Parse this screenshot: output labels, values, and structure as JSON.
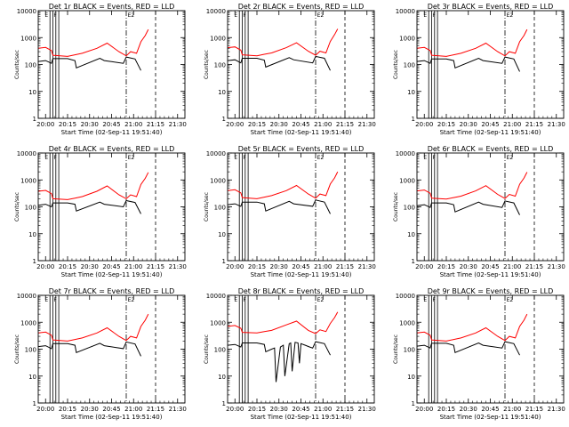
{
  "figure": {
    "background": "#ffffff",
    "events_color": "#000000",
    "lld_color": "#ff0000"
  },
  "chart_data": [
    {
      "type": "line",
      "title": "Det 1r BLACK = Events, RED = LLD",
      "xlabel": "Start Time (02-Sep-11 19:51:40)",
      "ylabel": "Counts/sec",
      "x_ticks": [
        "20:00",
        "20:15",
        "20:30",
        "20:45",
        "21:00",
        "21:15",
        "21:30"
      ],
      "y_ticks": [
        "1",
        "10",
        "100",
        "1000",
        "10000"
      ],
      "y_scale": "log",
      "xlim": [
        0,
        100
      ],
      "ylim": [
        1,
        10000
      ],
      "flag_labels": [
        "E",
        "F",
        "E2"
      ],
      "series": [
        {
          "name": "Events",
          "color": "#000000",
          "x": [
            0,
            5,
            9,
            10,
            20,
            25,
            26,
            42,
            45,
            58,
            60,
            66,
            70
          ],
          "y": [
            130,
            140,
            110,
            165,
            165,
            140,
            75,
            170,
            140,
            110,
            190,
            160,
            60
          ]
        },
        {
          "name": "LLD",
          "color": "#ff0000",
          "x": [
            0,
            5,
            9,
            10,
            20,
            25,
            30,
            40,
            47,
            55,
            60,
            63,
            67,
            70,
            73,
            75
          ],
          "y": [
            400,
            430,
            330,
            220,
            200,
            230,
            260,
            400,
            620,
            300,
            210,
            300,
            260,
            700,
            1200,
            2000
          ]
        }
      ]
    },
    {
      "type": "line",
      "title": "Det 2r BLACK = Events, RED = LLD",
      "xlabel": "Start Time (02-Sep-11 19:51:40)",
      "ylabel": "Counts/sec",
      "x_ticks": [
        "20:00",
        "20:15",
        "20:30",
        "20:45",
        "21:00",
        "21:15",
        "21:30"
      ],
      "y_ticks": [
        "1",
        "10",
        "100",
        "1000",
        "10000"
      ],
      "y_scale": "log",
      "xlim": [
        0,
        100
      ],
      "ylim": [
        1,
        10000
      ],
      "flag_labels": [
        "E",
        "F",
        "E2"
      ],
      "series": [
        {
          "name": "Events",
          "color": "#000000",
          "x": [
            0,
            5,
            9,
            10,
            20,
            25,
            26,
            42,
            45,
            58,
            60,
            66,
            70
          ],
          "y": [
            140,
            150,
            115,
            170,
            170,
            145,
            80,
            180,
            150,
            115,
            200,
            170,
            60
          ]
        },
        {
          "name": "LLD",
          "color": "#ff0000",
          "x": [
            0,
            5,
            9,
            10,
            20,
            25,
            30,
            40,
            47,
            55,
            60,
            63,
            67,
            70,
            73,
            75
          ],
          "y": [
            420,
            450,
            340,
            230,
            210,
            240,
            270,
            420,
            640,
            310,
            220,
            310,
            270,
            720,
            1300,
            2100
          ]
        }
      ]
    },
    {
      "type": "line",
      "title": "Det 3r BLACK = Events, RED = LLD",
      "xlabel": "Start Time (02-Sep-11 19:51:40)",
      "ylabel": "Counts/sec",
      "x_ticks": [
        "20:00",
        "20:15",
        "20:30",
        "20:45",
        "21:00",
        "21:15",
        "21:30"
      ],
      "y_ticks": [
        "1",
        "10",
        "100",
        "1000",
        "10000"
      ],
      "y_scale": "log",
      "xlim": [
        0,
        100
      ],
      "ylim": [
        1,
        10000
      ],
      "flag_labels": [
        "E",
        "F",
        "E2"
      ],
      "series": [
        {
          "name": "Events",
          "color": "#000000",
          "x": [
            0,
            5,
            9,
            10,
            20,
            25,
            26,
            42,
            45,
            58,
            60,
            66,
            70
          ],
          "y": [
            130,
            140,
            110,
            160,
            160,
            140,
            75,
            170,
            140,
            110,
            190,
            160,
            55
          ]
        },
        {
          "name": "LLD",
          "color": "#ff0000",
          "x": [
            0,
            5,
            9,
            10,
            20,
            25,
            30,
            40,
            47,
            55,
            60,
            63,
            67,
            70,
            73,
            75
          ],
          "y": [
            400,
            430,
            330,
            220,
            200,
            230,
            260,
            400,
            620,
            300,
            210,
            300,
            260,
            700,
            1200,
            2000
          ]
        }
      ]
    },
    {
      "type": "line",
      "title": "Det 4r BLACK = Events, RED = LLD",
      "xlabel": "Start Time (02-Sep-11 19:51:40)",
      "ylabel": "Counts/sec",
      "x_ticks": [
        "20:00",
        "20:15",
        "20:30",
        "20:45",
        "21:00",
        "21:15",
        "21:30"
      ],
      "y_ticks": [
        "1",
        "10",
        "100",
        "1000",
        "10000"
      ],
      "y_scale": "log",
      "xlim": [
        0,
        100
      ],
      "ylim": [
        1,
        10000
      ],
      "flag_labels": [
        "E",
        "F",
        "E2"
      ],
      "series": [
        {
          "name": "Events",
          "color": "#000000",
          "x": [
            0,
            5,
            9,
            10,
            20,
            25,
            26,
            42,
            45,
            58,
            60,
            66,
            70
          ],
          "y": [
            115,
            125,
            100,
            140,
            140,
            125,
            70,
            150,
            125,
            100,
            170,
            145,
            55
          ]
        },
        {
          "name": "LLD",
          "color": "#ff0000",
          "x": [
            0,
            5,
            9,
            10,
            20,
            25,
            30,
            40,
            47,
            55,
            60,
            63,
            67,
            70,
            73,
            75
          ],
          "y": [
            380,
            410,
            310,
            200,
            185,
            210,
            240,
            380,
            600,
            280,
            200,
            280,
            240,
            680,
            1150,
            1900
          ]
        }
      ]
    },
    {
      "type": "line",
      "title": "Det 5r BLACK = Events, RED = LLD",
      "xlabel": "Start Time (02-Sep-11 19:51:40)",
      "ylabel": "Counts/sec",
      "x_ticks": [
        "20:00",
        "20:15",
        "20:30",
        "20:45",
        "21:00",
        "21:15",
        "21:30"
      ],
      "y_ticks": [
        "1",
        "10",
        "100",
        "1000",
        "10000"
      ],
      "y_scale": "log",
      "xlim": [
        0,
        100
      ],
      "ylim": [
        1,
        10000
      ],
      "flag_labels": [
        "E",
        "F",
        "E2"
      ],
      "series": [
        {
          "name": "Events",
          "color": "#000000",
          "x": [
            0,
            5,
            9,
            10,
            20,
            25,
            26,
            42,
            45,
            58,
            60,
            66,
            70
          ],
          "y": [
            120,
            130,
            105,
            150,
            150,
            130,
            70,
            160,
            130,
            105,
            180,
            150,
            55
          ]
        },
        {
          "name": "LLD",
          "color": "#ff0000",
          "x": [
            0,
            5,
            9,
            10,
            20,
            25,
            30,
            40,
            47,
            55,
            60,
            63,
            67,
            70,
            73,
            75
          ],
          "y": [
            400,
            430,
            330,
            220,
            200,
            230,
            260,
            400,
            620,
            300,
            210,
            300,
            260,
            700,
            1200,
            2000
          ]
        }
      ]
    },
    {
      "type": "line",
      "title": "Det 6r BLACK = Events, RED = LLD",
      "xlabel": "Start Time (02-Sep-11 19:51:40)",
      "ylabel": "Counts/sec",
      "x_ticks": [
        "20:00",
        "20:15",
        "20:30",
        "20:45",
        "21:00",
        "21:15",
        "21:30"
      ],
      "y_ticks": [
        "1",
        "10",
        "100",
        "1000",
        "10000"
      ],
      "y_scale": "log",
      "xlim": [
        0,
        100
      ],
      "ylim": [
        1,
        10000
      ],
      "flag_labels": [
        "E",
        "F",
        "E2"
      ],
      "series": [
        {
          "name": "Events",
          "color": "#000000",
          "x": [
            0,
            5,
            9,
            10,
            20,
            25,
            26,
            42,
            45,
            58,
            60,
            66,
            70
          ],
          "y": [
            110,
            120,
            95,
            140,
            140,
            120,
            65,
            150,
            125,
            95,
            165,
            140,
            50
          ]
        },
        {
          "name": "LLD",
          "color": "#ff0000",
          "x": [
            0,
            5,
            9,
            10,
            20,
            25,
            30,
            40,
            47,
            55,
            60,
            63,
            67,
            70,
            73,
            75
          ],
          "y": [
            390,
            420,
            320,
            210,
            195,
            220,
            250,
            390,
            610,
            290,
            205,
            290,
            250,
            690,
            1180,
            1950
          ]
        }
      ]
    },
    {
      "type": "line",
      "title": "Det 7r BLACK = Events, RED = LLD",
      "xlabel": "Start Time (02-Sep-11 19:51:40)",
      "ylabel": "Counts/sec",
      "x_ticks": [
        "20:00",
        "20:15",
        "20:30",
        "20:45",
        "21:00",
        "21:15",
        "21:30"
      ],
      "y_ticks": [
        "1",
        "10",
        "100",
        "1000",
        "10000"
      ],
      "y_scale": "log",
      "xlim": [
        0,
        100
      ],
      "ylim": [
        1,
        10000
      ],
      "flag_labels": [
        "E",
        "F",
        "E2"
      ],
      "series": [
        {
          "name": "Events",
          "color": "#000000",
          "x": [
            0,
            5,
            9,
            10,
            20,
            25,
            26,
            42,
            45,
            58,
            60,
            66,
            70
          ],
          "y": [
            125,
            135,
            105,
            160,
            160,
            140,
            75,
            165,
            135,
            105,
            185,
            155,
            55
          ]
        },
        {
          "name": "LLD",
          "color": "#ff0000",
          "x": [
            0,
            5,
            9,
            10,
            20,
            25,
            30,
            40,
            47,
            55,
            60,
            63,
            67,
            70,
            73,
            75
          ],
          "y": [
            400,
            430,
            330,
            220,
            200,
            230,
            260,
            400,
            620,
            300,
            210,
            300,
            260,
            700,
            1200,
            2000
          ]
        }
      ]
    },
    {
      "type": "line",
      "title": "Det 8r BLACK = Events, RED = LLD",
      "xlabel": "Start Time (02-Sep-11 19:51:40)",
      "ylabel": "Counts/sec",
      "x_ticks": [
        "20:00",
        "20:15",
        "20:30",
        "20:45",
        "21:00",
        "21:15",
        "21:30"
      ],
      "y_ticks": [
        "1",
        "10",
        "100",
        "1000",
        "10000"
      ],
      "y_scale": "log",
      "xlim": [
        0,
        100
      ],
      "ylim": [
        1,
        10000
      ],
      "flag_labels": [
        "E",
        "F",
        "E2"
      ],
      "series": [
        {
          "name": "Events",
          "color": "#000000",
          "x": [
            0,
            5,
            9,
            10,
            20,
            25,
            26,
            30,
            32,
            33,
            36,
            38,
            39,
            42,
            43,
            44,
            46,
            48,
            49,
            50,
            53,
            56,
            58,
            60,
            66,
            70
          ],
          "y": [
            140,
            150,
            120,
            170,
            170,
            150,
            80,
            100,
            110,
            6,
            120,
            140,
            10,
            160,
            170,
            15,
            180,
            170,
            30,
            160,
            140,
            120,
            110,
            190,
            160,
            60
          ]
        },
        {
          "name": "LLD",
          "color": "#ff0000",
          "x": [
            0,
            5,
            9,
            10,
            20,
            25,
            30,
            40,
            47,
            55,
            60,
            63,
            67,
            70,
            73,
            75
          ],
          "y": [
            700,
            760,
            600,
            420,
            400,
            450,
            500,
            800,
            1100,
            500,
            380,
            520,
            450,
            900,
            1500,
            2400
          ]
        }
      ]
    },
    {
      "type": "line",
      "title": "Det 9r BLACK = Events, RED = LLD",
      "xlabel": "Start Time (02-Sep-11 19:51:40)",
      "ylabel": "Counts/sec",
      "x_ticks": [
        "20:00",
        "20:15",
        "20:30",
        "20:45",
        "21:00",
        "21:15",
        "21:30"
      ],
      "y_ticks": [
        "1",
        "10",
        "100",
        "1000",
        "10000"
      ],
      "y_scale": "log",
      "xlim": [
        0,
        100
      ],
      "ylim": [
        1,
        10000
      ],
      "flag_labels": [
        "E",
        "F",
        "E2"
      ],
      "series": [
        {
          "name": "Events",
          "color": "#000000",
          "x": [
            0,
            5,
            9,
            10,
            20,
            25,
            26,
            42,
            45,
            58,
            60,
            66,
            70
          ],
          "y": [
            130,
            140,
            110,
            165,
            165,
            140,
            75,
            170,
            140,
            110,
            190,
            160,
            60
          ]
        },
        {
          "name": "LLD",
          "color": "#ff0000",
          "x": [
            0,
            5,
            9,
            10,
            20,
            25,
            30,
            40,
            47,
            55,
            60,
            63,
            67,
            70,
            73,
            75
          ],
          "y": [
            400,
            430,
            330,
            220,
            200,
            230,
            260,
            400,
            620,
            300,
            210,
            300,
            260,
            700,
            1200,
            2000
          ]
        }
      ]
    }
  ]
}
